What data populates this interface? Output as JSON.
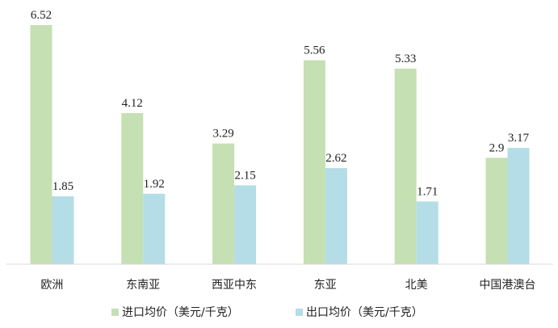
{
  "chart_data": {
    "type": "bar",
    "categories": [
      "欧洲",
      "东南亚",
      "西亚中东",
      "东亚",
      "北美",
      "中国港澳台"
    ],
    "series": [
      {
        "name": "进口均价（美元/千克）",
        "values": [
          6.52,
          4.12,
          3.29,
          5.56,
          5.33,
          2.9
        ],
        "labels": [
          "6.52",
          "4.12",
          "3.29",
          "5.56",
          "5.33",
          "2.9"
        ],
        "color": "#c5e0b3"
      },
      {
        "name": "出口均价（美元/千克）",
        "values": [
          1.85,
          1.92,
          2.15,
          2.62,
          1.71,
          3.17
        ],
        "labels": [
          "1.85",
          "1.92",
          "2.15",
          "2.62",
          "1.71",
          "3.17"
        ],
        "color": "#b4dde7"
      }
    ],
    "ylim": [
      0,
      6.52
    ],
    "grid": false,
    "legend_position": "bottom",
    "axis_color": "#d9d9d9"
  }
}
